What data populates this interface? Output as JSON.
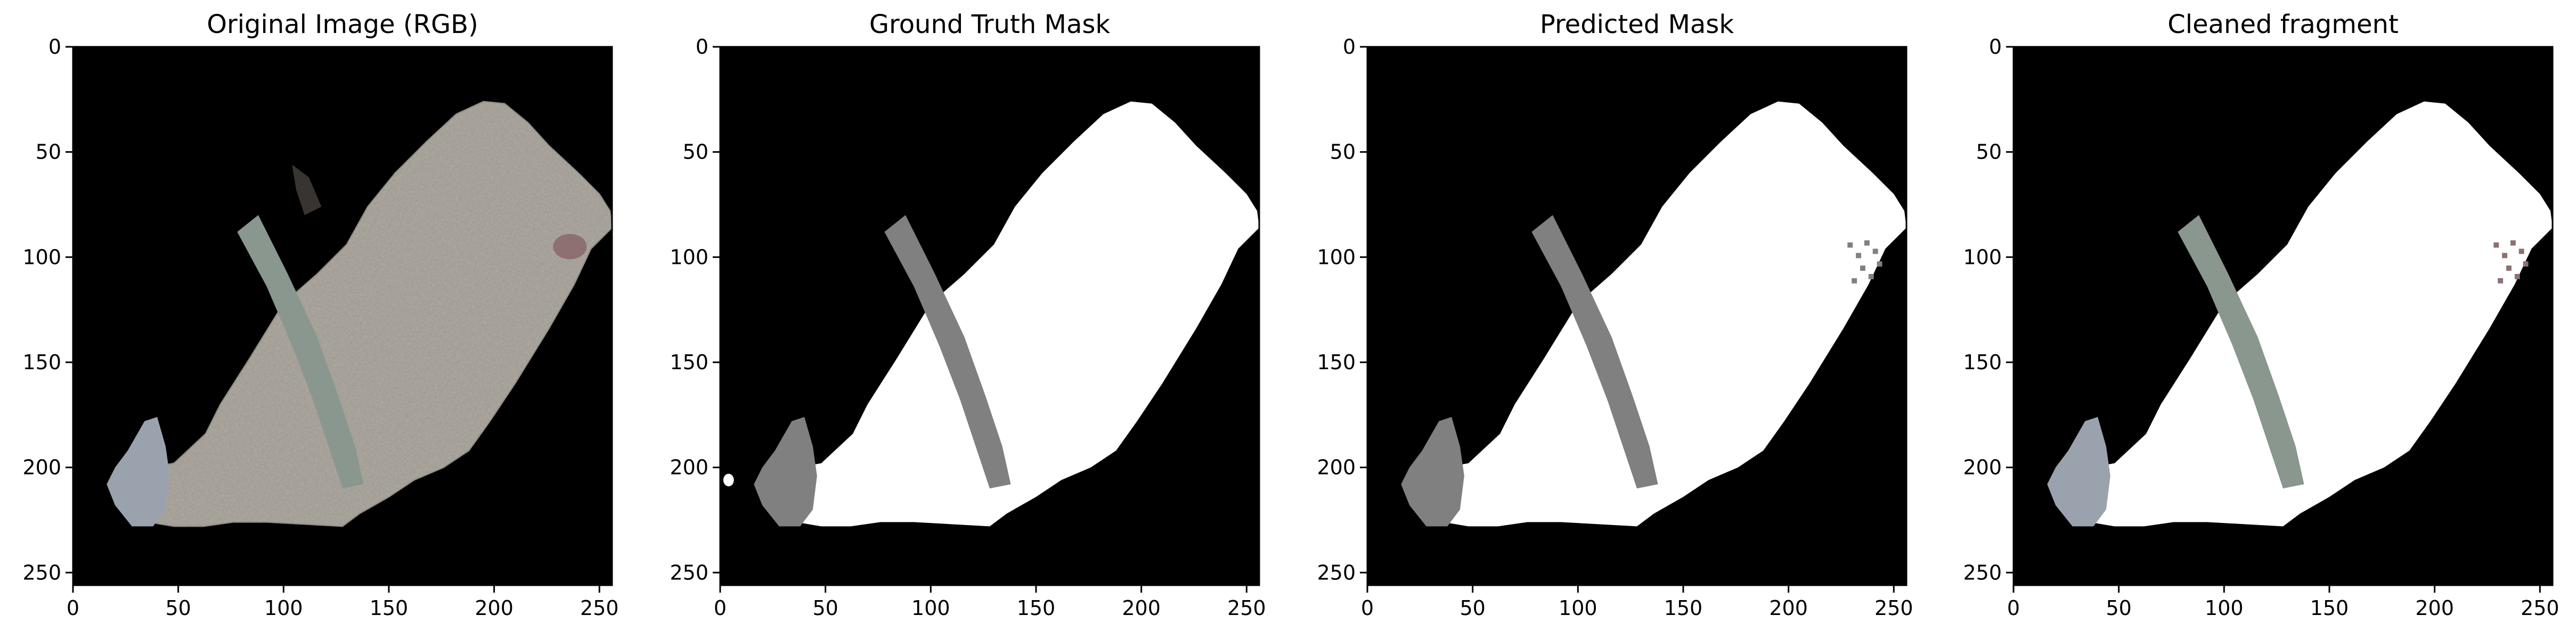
{
  "panels": [
    {
      "id": "original",
      "title": "Original Image (RGB)",
      "kind": "rgb",
      "xticks": [
        "0",
        "50",
        "100",
        "150",
        "200",
        "250"
      ],
      "yticks": [
        "0",
        "50",
        "100",
        "150",
        "200",
        "250"
      ]
    },
    {
      "id": "ground-truth",
      "title": "Ground Truth Mask",
      "kind": "gt",
      "xticks": [
        "0",
        "50",
        "100",
        "150",
        "200",
        "250"
      ],
      "yticks": [
        "0",
        "50",
        "100",
        "150",
        "200",
        "250"
      ]
    },
    {
      "id": "predicted",
      "title": "Predicted Mask",
      "kind": "pred",
      "xticks": [
        "0",
        "50",
        "100",
        "150",
        "200",
        "250"
      ],
      "yticks": [
        "0",
        "50",
        "100",
        "150",
        "200",
        "250"
      ]
    },
    {
      "id": "cleaned",
      "title": "Cleaned fragment",
      "kind": "clean",
      "xticks": [
        "0",
        "50",
        "100",
        "150",
        "200",
        "250"
      ],
      "yticks": [
        "0",
        "50",
        "100",
        "150",
        "200",
        "250"
      ]
    }
  ],
  "colors": {
    "background": "#000000",
    "mask_fill": "#ffffff",
    "mask_class": "#808080",
    "fragment_rgb": "#a39e95",
    "stripe_rgb": "#8a978f",
    "blob_rgb": "#9aa3ad",
    "stain_rgb": "#8e6f72"
  }
}
